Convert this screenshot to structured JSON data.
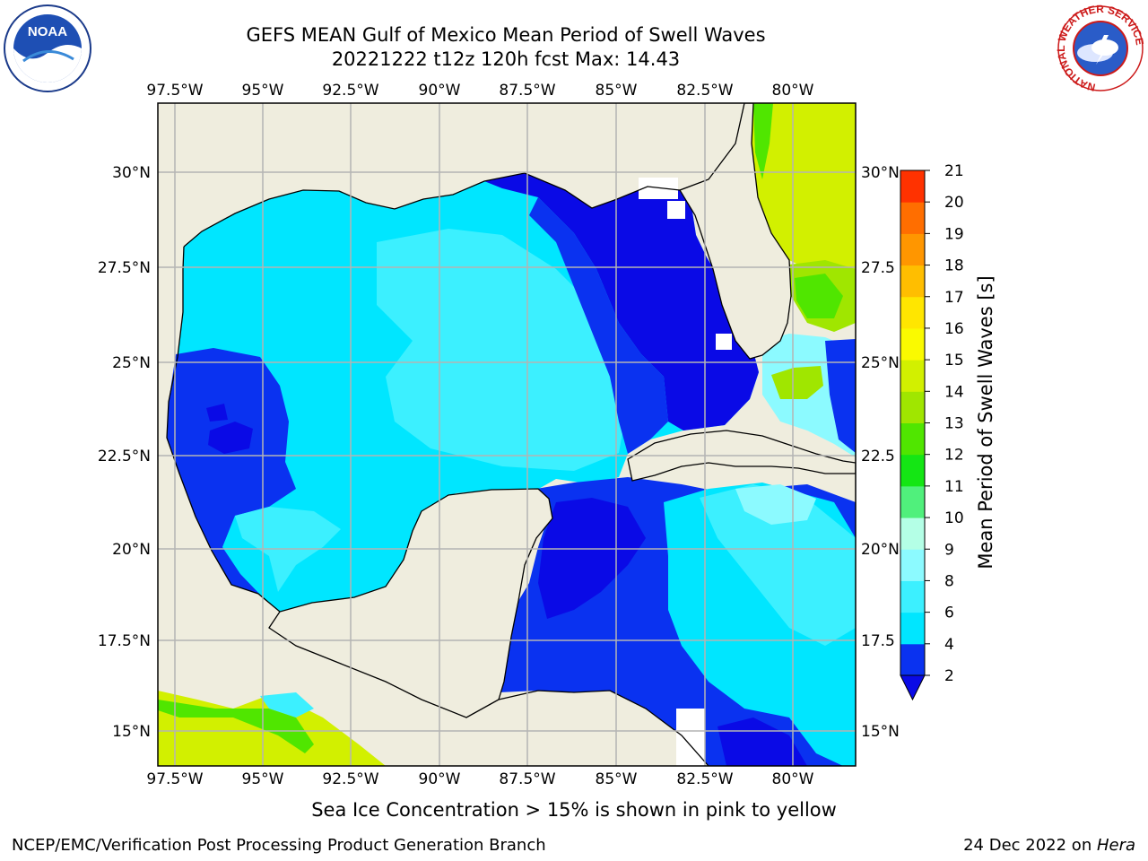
{
  "header": {
    "title_line1": "GEFS MEAN Gulf of Mexico Mean Period of Swell Waves",
    "title_line2": "20221222 t12z 120h fcst   Max: 14.43"
  },
  "logos": {
    "left": {
      "icon": "noaa-logo",
      "text": "NOAA"
    },
    "right": {
      "icon": "nws-logo",
      "ring_text": "NATIONAL WEATHER SERVICE"
    }
  },
  "map": {
    "lon_labels": [
      "97.5°W",
      "95°W",
      "92.5°W",
      "90°W",
      "87.5°W",
      "85°W",
      "82.5°W",
      "80°W"
    ],
    "lat_labels_left": [
      "30°N",
      "27.5°N",
      "25°N",
      "22.5°N",
      "20°N",
      "17.5°N",
      "15°N"
    ],
    "lat_labels_right": [
      "30°N",
      "27.5",
      "25°N",
      "22.5",
      "20°N",
      "17.5",
      "15°N"
    ],
    "colors": {
      "land": "#efedde",
      "gridline": "#b4b4b4",
      "coast": "#000000"
    }
  },
  "colorbar": {
    "label": "Mean Period of Swell Waves [s]",
    "ticks": [
      "2",
      "4",
      "6",
      "8",
      "9",
      "10",
      "11",
      "12",
      "13",
      "14",
      "15",
      "16",
      "17",
      "18",
      "19",
      "20",
      "21"
    ],
    "colors": [
      "#0a32f0",
      "#00e6ff",
      "#3cf0ff",
      "#8cfaff",
      "#b4ffe6",
      "#50f07c",
      "#14e614",
      "#50e600",
      "#a0e600",
      "#d2f000",
      "#fafa00",
      "#ffe600",
      "#ffbe00",
      "#ff9600",
      "#ff6e00",
      "#ff3200"
    ],
    "extend_color": "#0a0ae6"
  },
  "footer": {
    "ice_note": "Sea Ice Concentration > 15% is shown in pink to yellow",
    "left": "NCEP/EMC/Verification Post Processing Product Generation Branch",
    "right_date": "24 Dec 2022 on ",
    "right_machine": "Hera"
  }
}
